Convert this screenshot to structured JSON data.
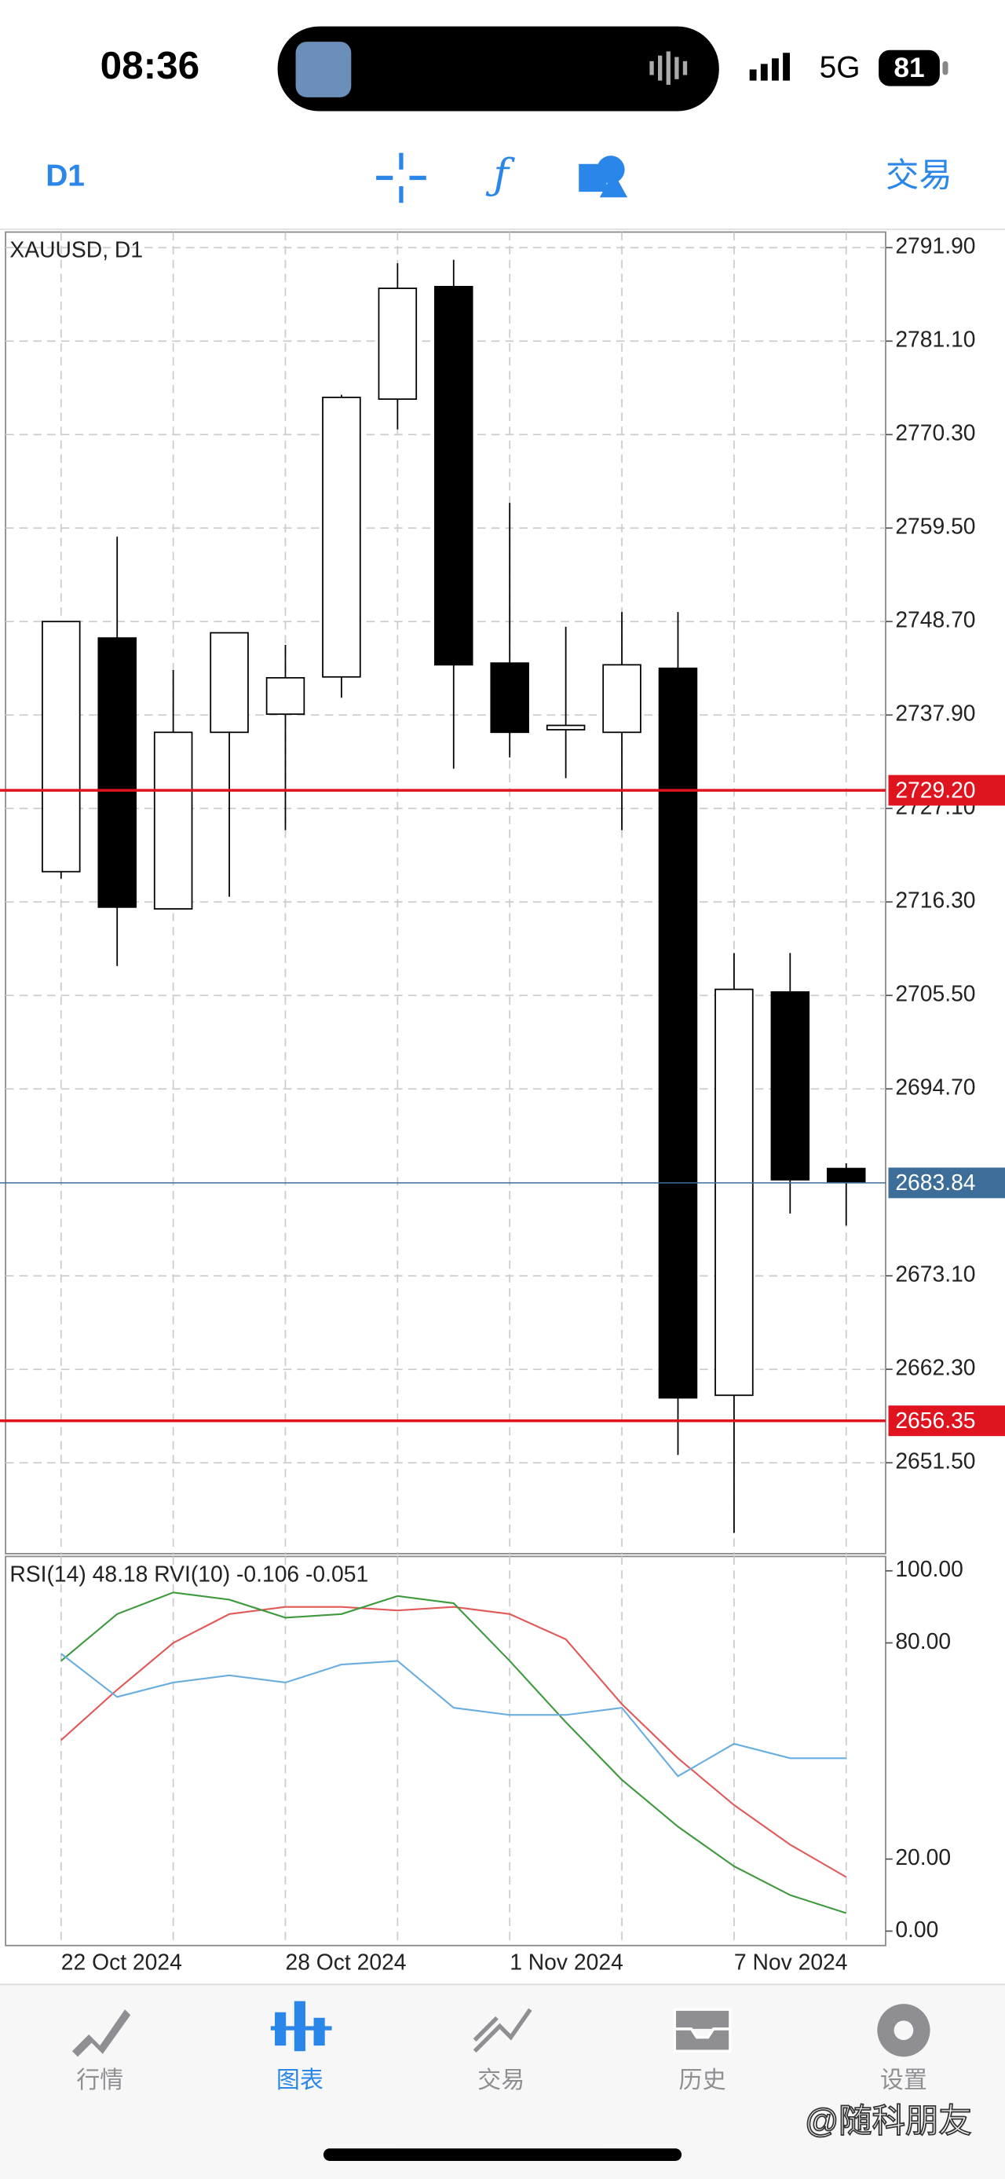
{
  "status_bar": {
    "time": "08:36",
    "network": "5G",
    "battery": "81"
  },
  "toolbar": {
    "timeframe": "D1",
    "trade": "交易"
  },
  "chart_data": [
    {
      "type": "candlestick",
      "title": "XAUUSD, D1",
      "categories": [
        "22 Oct 2024",
        null,
        null,
        null,
        "28 Oct 2024",
        null,
        null,
        null,
        "1 Nov 2024",
        null,
        null,
        null,
        "7 Nov 2024",
        null,
        null
      ],
      "open": [
        2719.8,
        2746.8,
        2715.5,
        2735.9,
        2738.0,
        2742.3,
        2774.4,
        2787.4,
        2743.9,
        2736.2,
        2735.9,
        2743.3,
        2659.3,
        2705.9,
        2685.5
      ],
      "high": [
        2748.7,
        2758.5,
        2743.1,
        2747.4,
        2746.0,
        2774.9,
        2790.1,
        2790.5,
        2762.4,
        2748.1,
        2749.8,
        2749.8,
        2710.4,
        2710.4,
        2686.1
      ],
      "low": [
        2719.0,
        2708.9,
        2715.5,
        2716.9,
        2724.6,
        2739.9,
        2770.9,
        2731.7,
        2733.0,
        2730.6,
        2724.6,
        2652.4,
        2643.4,
        2680.3,
        2678.9
      ],
      "close": [
        2748.7,
        2715.7,
        2735.9,
        2747.4,
        2742.2,
        2774.6,
        2787.2,
        2743.7,
        2735.9,
        2736.7,
        2743.7,
        2659.0,
        2706.2,
        2684.2,
        2683.9
      ],
      "up_color": "#ffffff",
      "down_color": "#000000",
      "grid": true,
      "ylim": [
        2641.0,
        2793.7
      ],
      "yticks": [
        {
          "value": 2791.9,
          "label": "2791.90"
        },
        {
          "value": 2781.1,
          "label": "2781.10"
        },
        {
          "value": 2770.3,
          "label": "2770.30"
        },
        {
          "value": 2759.5,
          "label": "2759.50"
        },
        {
          "value": 2748.7,
          "label": "2748.70"
        },
        {
          "value": 2737.9,
          "label": "2737.90"
        },
        {
          "value": 2727.1,
          "label": "2727.10"
        },
        {
          "value": 2716.3,
          "label": "2716.30"
        },
        {
          "value": 2705.5,
          "label": "2705.50"
        },
        {
          "value": 2694.7,
          "label": "2694.70"
        },
        {
          "value": 2673.1,
          "label": "2673.10"
        },
        {
          "value": 2662.3,
          "label": "2662.30"
        },
        {
          "value": 2651.5,
          "label": "2651.50"
        }
      ],
      "levels": [
        {
          "value": 2729.2,
          "label": "2729.20",
          "color": "#e0141e"
        },
        {
          "value": 2656.35,
          "label": "2656.35",
          "color": "#e0141e"
        },
        {
          "value": 2683.84,
          "label": "2683.84",
          "color": "#3d6e99"
        }
      ]
    },
    {
      "type": "line",
      "title": "RSI(14) 48.18 RVI(10) -0.106 -0.051",
      "series": [
        {
          "color": "#e05a5a",
          "values": [
            53,
            67,
            80,
            88,
            90,
            90,
            89,
            90,
            88,
            81,
            63,
            48,
            35,
            24,
            15
          ]
        },
        {
          "color": "#3f9a3f",
          "values": [
            75,
            88,
            94,
            92,
            87,
            88,
            93,
            91,
            75,
            58,
            42,
            29,
            18,
            10,
            5
          ]
        },
        {
          "color": "#6aaee0",
          "values": [
            77,
            65,
            69,
            71,
            69,
            74,
            75,
            62,
            60,
            60,
            62,
            43,
            52,
            48,
            48
          ]
        }
      ],
      "ylim": [
        -4,
        104
      ],
      "yticks": [
        {
          "value": 100,
          "label": "100.00"
        },
        {
          "value": 80,
          "label": "80.00"
        },
        {
          "value": 20,
          "label": "20.00"
        },
        {
          "value": 0,
          "label": "0.00"
        }
      ]
    }
  ],
  "nav": [
    "行情",
    "图表",
    "交易",
    "历史",
    "设置"
  ],
  "watermark": "@随科朋友"
}
